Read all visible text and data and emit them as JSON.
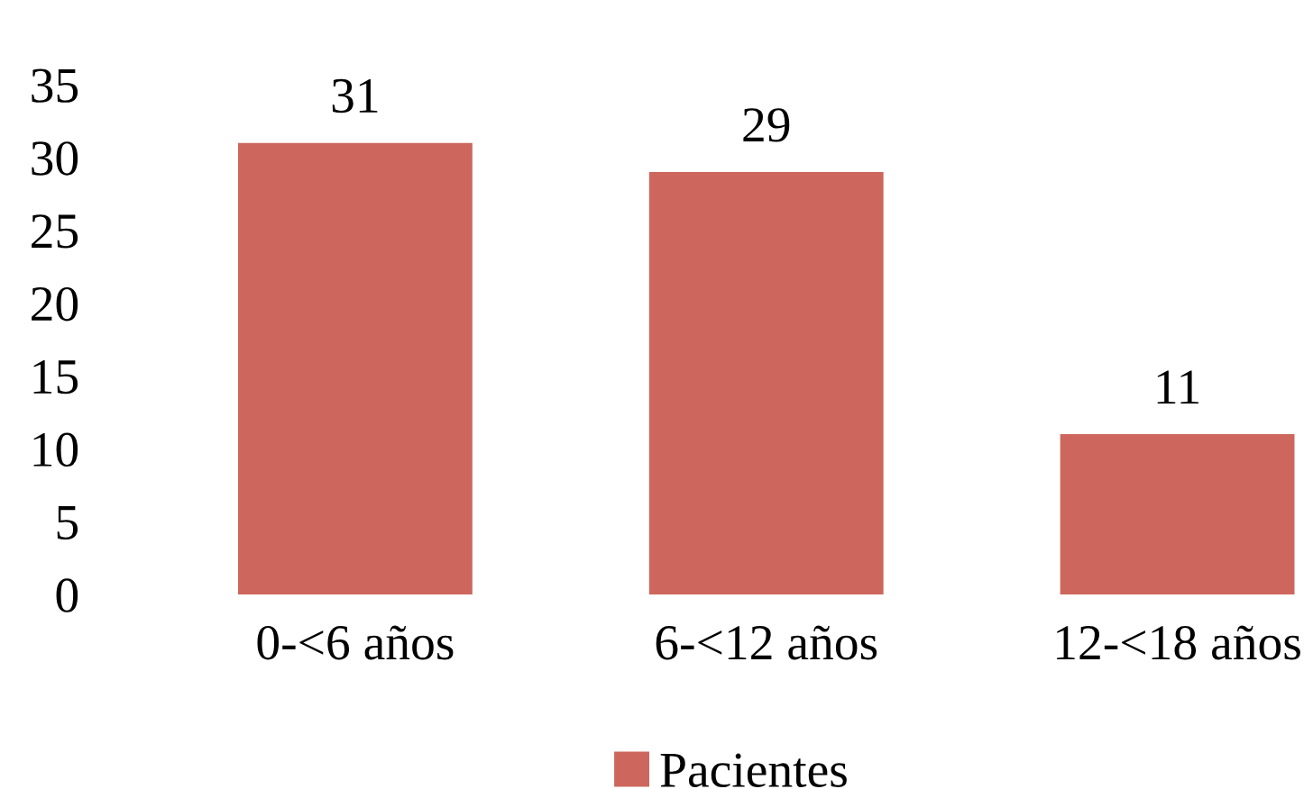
{
  "chart_data": {
    "type": "bar",
    "categories": [
      "0-<6 años",
      "6-<12 años",
      "12-<18 años"
    ],
    "series": [
      {
        "name": "Pacientes",
        "color": "#cd665c",
        "values": [
          31,
          29,
          11
        ]
      }
    ],
    "ylim": [
      0,
      35
    ],
    "yticks": [
      0,
      5,
      10,
      15,
      20,
      25,
      30,
      35
    ],
    "grid": false,
    "legend": "bottom",
    "data_labels": true
  }
}
